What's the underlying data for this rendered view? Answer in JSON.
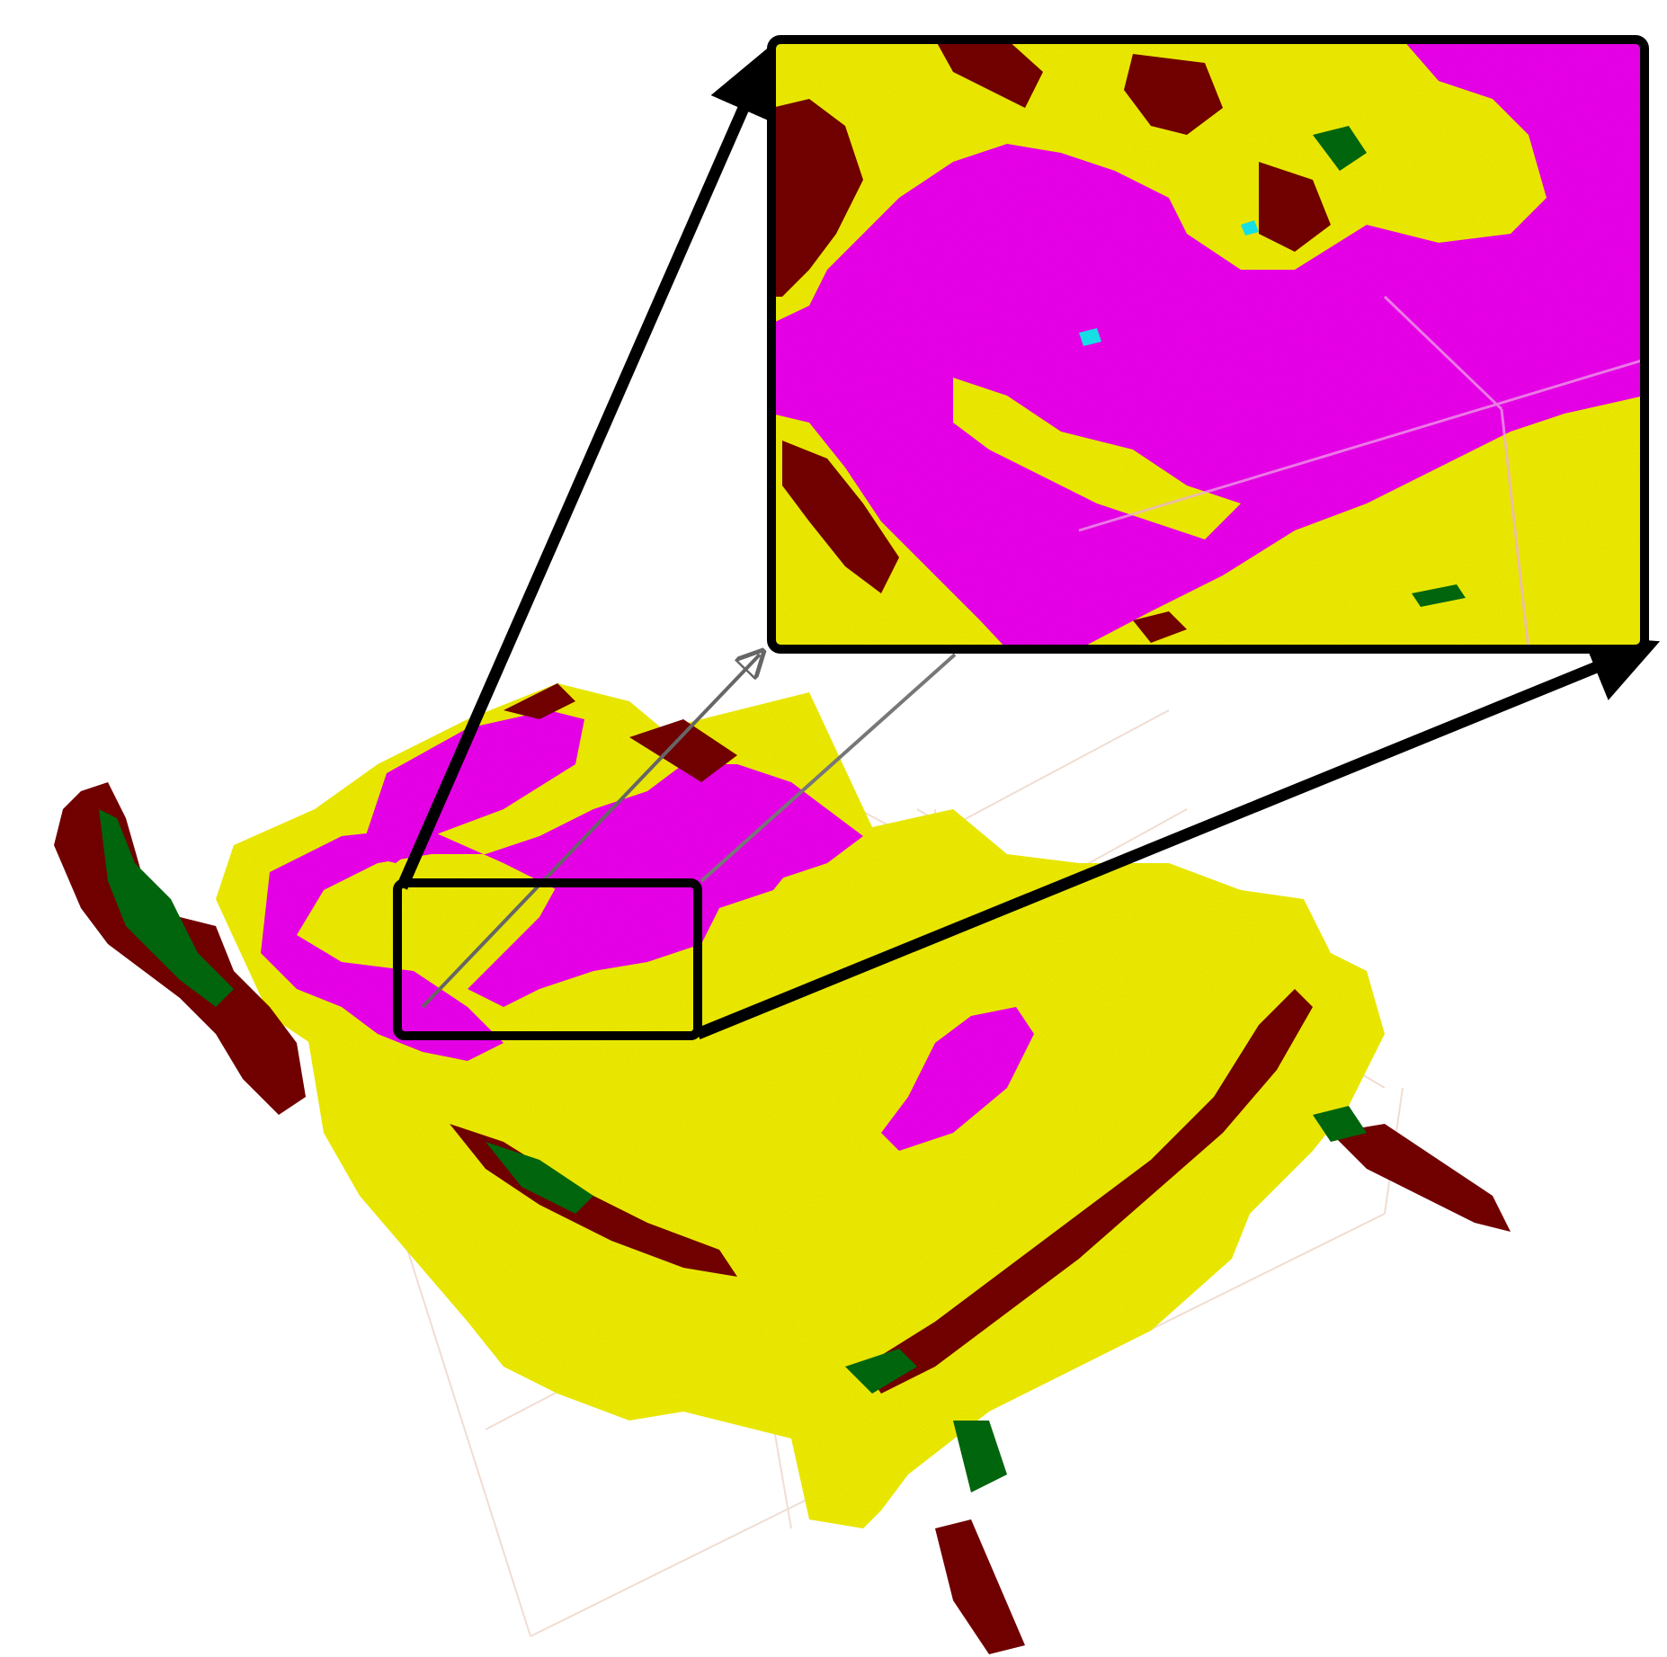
{
  "figure": {
    "description_visible_text": "",
    "colors": {
      "floor": "#f2f000",
      "magenta": "#ee00ee",
      "maroon": "#760000",
      "green": "#0b6b18",
      "cyan": "#1ee8ee",
      "grid": "#f1ddd2",
      "frame": "#000000",
      "background": "#ffffff"
    },
    "legend": []
  }
}
